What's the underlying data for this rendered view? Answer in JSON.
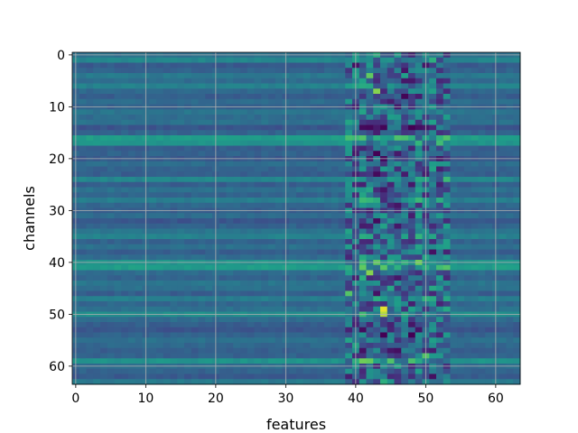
{
  "chart_data": {
    "type": "heatmap",
    "title": "",
    "xlabel": "features",
    "ylabel": "channels",
    "x_ticks": [
      "0",
      "10",
      "20",
      "30",
      "40",
      "50",
      "60"
    ],
    "y_ticks": [
      "0",
      "10",
      "20",
      "30",
      "40",
      "50",
      "60"
    ],
    "xlim": [
      -0.5,
      63.5
    ],
    "ylim": [
      63.5,
      -0.5
    ],
    "grid": true,
    "colormap": "viridis",
    "n_rows": 64,
    "n_cols": 64,
    "value_range": [
      0,
      1
    ],
    "row_bias": [
      0.42,
      0.52,
      0.32,
      0.36,
      0.46,
      0.4,
      0.5,
      0.38,
      0.34,
      0.4,
      0.36,
      0.44,
      0.4,
      0.42,
      0.3,
      0.36,
      0.62,
      0.58,
      0.34,
      0.36,
      0.32,
      0.4,
      0.36,
      0.34,
      0.52,
      0.34,
      0.42,
      0.36,
      0.48,
      0.38,
      0.34,
      0.4,
      0.3,
      0.36,
      0.44,
      0.5,
      0.36,
      0.42,
      0.34,
      0.4,
      0.58,
      0.62,
      0.4,
      0.36,
      0.44,
      0.42,
      0.34,
      0.48,
      0.38,
      0.42,
      0.56,
      0.4,
      0.34,
      0.3,
      0.36,
      0.42,
      0.38,
      0.34,
      0.36,
      0.58,
      0.4,
      0.36,
      0.32,
      0.46
    ],
    "hotspots": [
      {
        "row": 0,
        "col": 43,
        "value": 0.7
      },
      {
        "row": 1,
        "col": 42,
        "value": 0.55
      },
      {
        "row": 4,
        "col": 42,
        "value": 0.85
      },
      {
        "row": 7,
        "col": 43,
        "value": 0.9
      },
      {
        "row": 16,
        "col": 43,
        "value": 0.7
      },
      {
        "row": 16,
        "col": 50,
        "value": 0.65
      },
      {
        "row": 24,
        "col": 40,
        "value": 0.6
      },
      {
        "row": 24,
        "col": 50,
        "value": 0.65
      },
      {
        "row": 33,
        "col": 44,
        "value": 0.65
      },
      {
        "row": 40,
        "col": 49,
        "value": 0.88
      },
      {
        "row": 41,
        "col": 41,
        "value": 0.85
      },
      {
        "row": 42,
        "col": 42,
        "value": 0.9
      },
      {
        "row": 43,
        "col": 41,
        "value": 0.7
      },
      {
        "row": 45,
        "col": 51,
        "value": 0.68
      },
      {
        "row": 46,
        "col": 39,
        "value": 0.82
      },
      {
        "row": 47,
        "col": 50,
        "value": 0.72
      },
      {
        "row": 49,
        "col": 44,
        "value": 0.98
      },
      {
        "row": 50,
        "col": 44,
        "value": 0.94
      },
      {
        "row": 56,
        "col": 40,
        "value": 0.66
      },
      {
        "row": 58,
        "col": 50,
        "value": 0.82
      },
      {
        "row": 59,
        "col": 41,
        "value": 0.88
      },
      {
        "row": 59,
        "col": 42,
        "value": 0.86
      }
    ]
  }
}
